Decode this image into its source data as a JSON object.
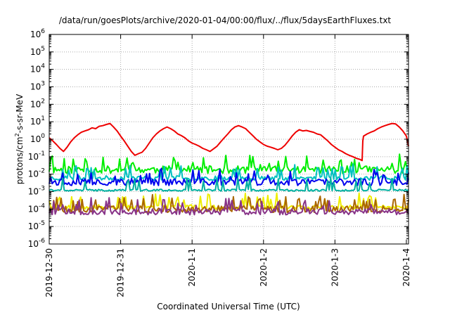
{
  "chart_data": {
    "type": "line",
    "title": "/data/run/goesPlots/archive/2020-01-04/00:00/flux/../flux/5daysEarthFluxes.txt",
    "xlabel": "Coordinated Universal Time (UTC)",
    "ylabel_base": "protons/cm",
    "ylabel_sup": "2",
    "ylabel_tail": "-s-sr-MeV",
    "y_scale": "log",
    "ylim": [
      1e-06,
      1000000.0
    ],
    "y_tick_exponents": [
      -6,
      -5,
      -4,
      -3,
      -2,
      -1,
      0,
      1,
      2,
      3,
      4,
      5,
      6
    ],
    "xlim_days": [
      0,
      5.03
    ],
    "x_ticks": [
      {
        "label": "2019-12-30",
        "day": 0
      },
      {
        "label": "2019-12-31",
        "day": 1
      },
      {
        "label": "2020-1-1",
        "day": 2
      },
      {
        "label": "2020-1-2",
        "day": 3
      },
      {
        "label": "2020-1-3",
        "day": 4
      },
      {
        "label": "2020-1-4",
        "day": 5
      }
    ],
    "grid": true,
    "legend": "none",
    "series": [
      {
        "color": "#ee0000",
        "x": [
          0.0,
          0.05,
          0.1,
          0.15,
          0.2,
          0.25,
          0.3,
          0.35,
          0.4,
          0.45,
          0.5,
          0.55,
          0.6,
          0.65,
          0.7,
          0.75,
          0.8,
          0.85,
          0.9,
          0.95,
          1.0,
          1.05,
          1.1,
          1.15,
          1.2,
          1.25,
          1.3,
          1.35,
          1.4,
          1.45,
          1.5,
          1.55,
          1.6,
          1.65,
          1.7,
          1.75,
          1.8,
          1.85,
          1.9,
          1.95,
          2.0,
          2.05,
          2.1,
          2.15,
          2.2,
          2.25,
          2.3,
          2.35,
          2.4,
          2.45,
          2.5,
          2.55,
          2.6,
          2.65,
          2.7,
          2.75,
          2.8,
          2.85,
          2.9,
          2.95,
          3.0,
          3.05,
          3.1,
          3.15,
          3.2,
          3.25,
          3.3,
          3.35,
          3.4,
          3.45,
          3.5,
          3.55,
          3.6,
          3.65,
          3.7,
          3.75,
          3.8,
          3.85,
          3.9,
          3.95,
          4.0,
          4.05,
          4.1,
          4.15,
          4.2,
          4.25,
          4.3,
          4.35,
          4.38,
          4.39,
          4.4,
          4.45,
          4.5,
          4.55,
          4.6,
          4.65,
          4.7,
          4.75,
          4.8,
          4.85,
          4.9,
          4.95,
          5.0,
          5.03
        ],
        "y": [
          1.2,
          0.8,
          0.5,
          0.3,
          0.2,
          0.35,
          0.7,
          1.2,
          1.8,
          2.5,
          3.0,
          3.5,
          4.5,
          4.0,
          5.5,
          6.0,
          7.0,
          8.0,
          5.0,
          3.0,
          1.5,
          0.8,
          0.4,
          0.2,
          0.12,
          0.15,
          0.18,
          0.3,
          0.6,
          1.2,
          2.0,
          3.0,
          4.0,
          5.0,
          4.0,
          3.0,
          2.0,
          1.6,
          1.2,
          0.8,
          0.6,
          0.5,
          0.4,
          0.3,
          0.25,
          0.2,
          0.28,
          0.4,
          0.7,
          1.2,
          2.0,
          3.5,
          5.0,
          6.0,
          5.0,
          4.0,
          2.5,
          1.6,
          1.0,
          0.7,
          0.5,
          0.4,
          0.35,
          0.3,
          0.25,
          0.3,
          0.45,
          0.8,
          1.5,
          2.5,
          3.5,
          3.0,
          3.2,
          2.8,
          2.5,
          2.0,
          1.8,
          1.2,
          0.8,
          0.5,
          0.35,
          0.25,
          0.2,
          0.15,
          0.12,
          0.1,
          0.08,
          0.07,
          0.06,
          0.8,
          1.5,
          2.0,
          2.5,
          3.0,
          4.0,
          5.0,
          6.0,
          7.0,
          8.0,
          7.5,
          5.0,
          3.0,
          1.5,
          0.4
        ]
      },
      {
        "color": "#00ee00",
        "x_start": 0,
        "x_end": 5.03,
        "base": 0.018,
        "amp": 1.0,
        "seed": 11
      },
      {
        "color": "#00c0c0",
        "x_start": 0,
        "x_end": 5.03,
        "base": 0.006,
        "amp": 0.6,
        "seed": 23
      },
      {
        "color": "#0000ee",
        "x_start": 0,
        "x_end": 5.03,
        "base": 0.0035,
        "amp": 0.9,
        "seed": 37
      },
      {
        "color": "#00b0a0",
        "x_start": 0,
        "x_end": 5.03,
        "base": 0.0012,
        "amp": 0.25,
        "seed": 41
      },
      {
        "color": "#eeee00",
        "x_start": 0,
        "x_end": 5.03,
        "base": 0.00013,
        "amp": 0.6,
        "seed": 53
      },
      {
        "color": "#aa6600",
        "x_start": 0,
        "x_end": 5.03,
        "base": 0.0001,
        "amp": 0.9,
        "seed": 67
      },
      {
        "color": "#883388",
        "x_start": 0,
        "x_end": 5.03,
        "base": 7e-05,
        "amp": 0.8,
        "seed": 79
      }
    ]
  }
}
